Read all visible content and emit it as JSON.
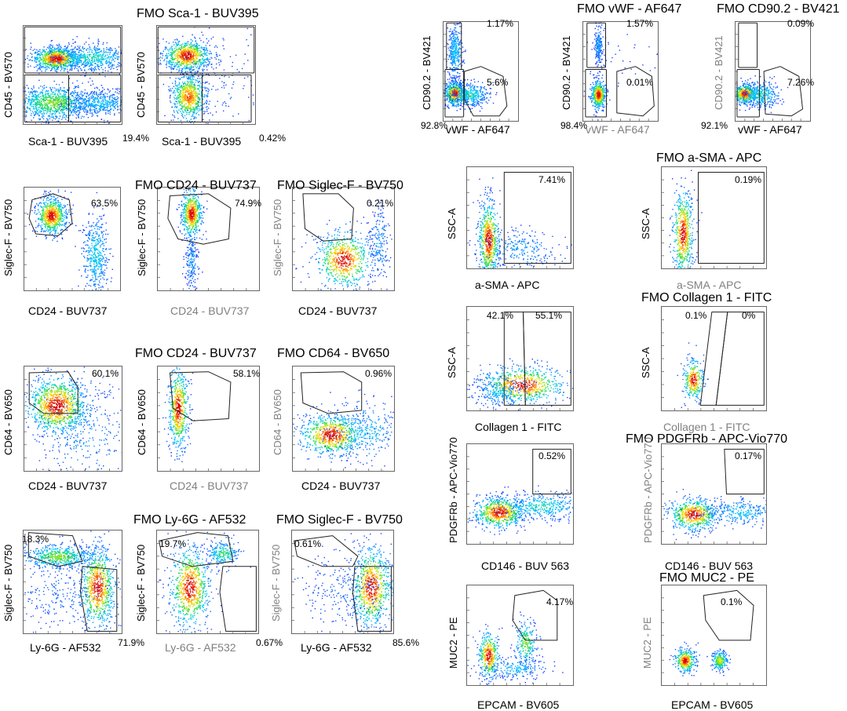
{
  "colors": {
    "fmo_axis_grey": "#808080",
    "gate": "#222222",
    "density_low": "#1a2cff",
    "density_high": "#d40000"
  },
  "chart_data": [
    {
      "type": "scatter",
      "id": "a1",
      "title": "",
      "xlabel": "Sca-1 - BUV395",
      "ylabel": "CD45 - BV570",
      "gates": [
        "",
        "19.4%"
      ],
      "corner": "",
      "grey_x": false,
      "grey_y": false
    },
    {
      "type": "scatter",
      "id": "a2",
      "title": "FMO Sca-1 - BUV395",
      "xlabel": "Sca-1 - BUV395",
      "ylabel": "CD45 - BV570",
      "gates": [
        "",
        "0.42%"
      ],
      "corner": "",
      "grey_x": false,
      "grey_y": false
    },
    {
      "type": "scatter",
      "id": "b1",
      "title": "",
      "xlabel": "vWF - AF647",
      "ylabel": "CD90.2 - BV421",
      "gates": [
        "1.17%",
        "5.6%"
      ],
      "corner": "92.8%",
      "grey_x": false,
      "grey_y": false
    },
    {
      "type": "scatter",
      "id": "b2",
      "title": "FMO vWF - AF647",
      "xlabel": "vWF - AF647",
      "ylabel": "CD90.2 - BV421",
      "gates": [
        "1.57%",
        "0.01%"
      ],
      "corner": "98.4%",
      "grey_x": true,
      "grey_y": false
    },
    {
      "type": "scatter",
      "id": "b3",
      "title": "FMO CD90.2 - BV421",
      "xlabel": "vWF - AF647",
      "ylabel": "CD90.2 - BV421",
      "gates": [
        "0.09%",
        "7.26%"
      ],
      "corner": "92.1%",
      "grey_x": false,
      "grey_y": true
    },
    {
      "type": "scatter",
      "id": "c1",
      "title": "",
      "xlabel": "CD24 - BUV737",
      "ylabel": "Siglec-F - BV750",
      "gates": [
        "63.5%"
      ],
      "corner": "",
      "grey_x": false,
      "grey_y": false
    },
    {
      "type": "scatter",
      "id": "c2",
      "title": "FMO CD24 - BUV737",
      "xlabel": "CD24 - BUV737",
      "ylabel": "Siglec-F - BV750",
      "gates": [
        "74.9%"
      ],
      "corner": "",
      "grey_x": true,
      "grey_y": false
    },
    {
      "type": "scatter",
      "id": "c3",
      "title": "FMO Siglec-F - BV750",
      "xlabel": "CD24 - BUV737",
      "ylabel": "Siglec-F - BV750",
      "gates": [
        "0.21%"
      ],
      "corner": "",
      "grey_x": false,
      "grey_y": true
    },
    {
      "type": "scatter",
      "id": "d1",
      "title": "",
      "xlabel": "CD24 - BUV737",
      "ylabel": "CD64 - BV650",
      "gates": [
        "60.1%"
      ],
      "corner": "",
      "grey_x": false,
      "grey_y": false
    },
    {
      "type": "scatter",
      "id": "d2",
      "title": "FMO CD24 - BUV737",
      "xlabel": "CD24 - BUV737",
      "ylabel": "CD64 - BV650",
      "gates": [
        "58.1%"
      ],
      "corner": "",
      "grey_x": true,
      "grey_y": false
    },
    {
      "type": "scatter",
      "id": "d3",
      "title": "FMO CD64 - BV650",
      "xlabel": "CD24 - BUV737",
      "ylabel": "CD64 - BV650",
      "gates": [
        "0.96%"
      ],
      "corner": "",
      "grey_x": false,
      "grey_y": true
    },
    {
      "type": "scatter",
      "id": "e1",
      "title": "",
      "xlabel": "Ly-6G - AF532",
      "ylabel": "Siglec-F - BV750",
      "gates": [
        "18.3%",
        "71.9%"
      ],
      "corner": "",
      "grey_x": false,
      "grey_y": false
    },
    {
      "type": "scatter",
      "id": "e2",
      "title": "FMO Ly-6G - AF532",
      "xlabel": "Ly-6G - AF532",
      "ylabel": "Siglec-F - BV750",
      "gates": [
        "19.7%",
        "0.67%"
      ],
      "corner": "",
      "grey_x": true,
      "grey_y": false
    },
    {
      "type": "scatter",
      "id": "e3",
      "title": "FMO Siglec-F - BV750",
      "xlabel": "Ly-6G - AF532",
      "ylabel": "Siglec-F - BV750",
      "gates": [
        "0.61%",
        "85.6%"
      ],
      "corner": "",
      "grey_x": false,
      "grey_y": true
    },
    {
      "type": "scatter",
      "id": "f1",
      "title": "",
      "xlabel": "a-SMA - APC",
      "ylabel": "SSC-A",
      "gates": [
        "7.41%"
      ],
      "corner": "",
      "grey_x": false,
      "grey_y": false
    },
    {
      "type": "scatter",
      "id": "f2",
      "title": "FMO a-SMA - APC",
      "xlabel": "a-SMA - APC",
      "ylabel": "SSC-A",
      "gates": [
        "0.19%"
      ],
      "corner": "",
      "grey_x": true,
      "grey_y": false
    },
    {
      "type": "scatter",
      "id": "g1",
      "title": "",
      "xlabel": "Collagen 1 - FITC",
      "ylabel": "SSC-A",
      "gates": [
        "42.1%",
        "55.1%"
      ],
      "corner": "",
      "grey_x": false,
      "grey_y": false
    },
    {
      "type": "scatter",
      "id": "g2",
      "title": "FMO Collagen 1 - FITC",
      "xlabel": "Collagen 1 - FITC",
      "ylabel": "SSC-A",
      "gates": [
        "0.1%",
        "0%"
      ],
      "corner": "",
      "grey_x": true,
      "grey_y": false
    },
    {
      "type": "scatter",
      "id": "h1",
      "title": "",
      "xlabel": "CD146 - BUV 563",
      "ylabel": "PDGFRb - APC-Vio770",
      "gates": [
        "0.52%"
      ],
      "corner": "",
      "grey_x": false,
      "grey_y": false
    },
    {
      "type": "scatter",
      "id": "h2",
      "title": "FMO PDGFRb - APC-Vio770",
      "xlabel": "CD146 - BUV 563",
      "ylabel": "PDGFRb - APC-Vio770",
      "gates": [
        "0.17%"
      ],
      "corner": "",
      "grey_x": false,
      "grey_y": true
    },
    {
      "type": "scatter",
      "id": "i1",
      "title": "",
      "xlabel": "EPCAM - BV605",
      "ylabel": "MUC2 - PE",
      "gates": [
        "4.17%"
      ],
      "corner": "",
      "grey_x": false,
      "grey_y": false
    },
    {
      "type": "scatter",
      "id": "i2",
      "title": "FMO MUC2 - PE",
      "xlabel": "EPCAM - BV605",
      "ylabel": "MUC2 - PE",
      "gates": [
        "0.1%"
      ],
      "corner": "",
      "grey_x": false,
      "grey_y": true
    }
  ]
}
